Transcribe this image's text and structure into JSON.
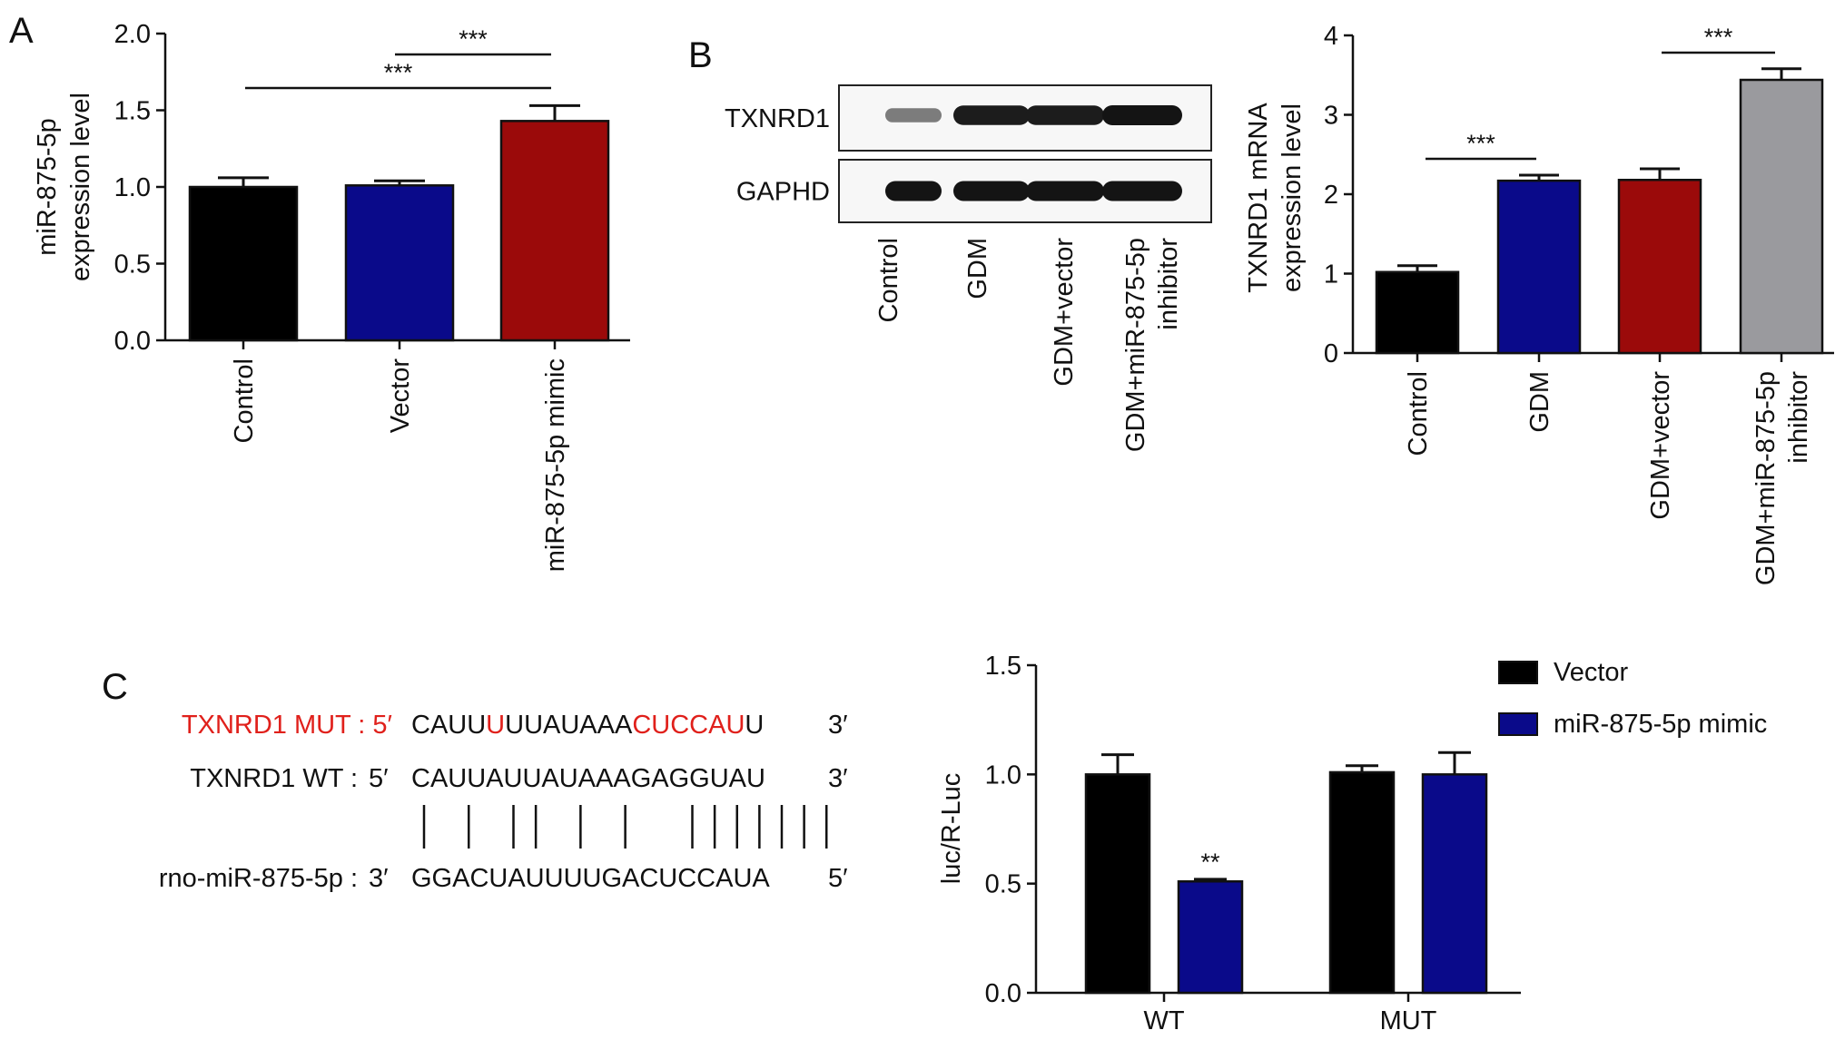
{
  "panels": {
    "a": "A",
    "b": "B",
    "c": "C"
  },
  "colors": {
    "black": "#000000",
    "blue": "#0a0a8a",
    "red": "#9b0a0a",
    "grey": "#9a9a9e",
    "seq_red": "#e0201b"
  },
  "chart_data": [
    {
      "id": "panelA",
      "type": "bar",
      "categories": [
        "Control",
        "Vector",
        "miR-875-5p mimic"
      ],
      "values": [
        1.0,
        1.01,
        1.43
      ],
      "errors": [
        0.06,
        0.03,
        0.1
      ],
      "bar_colors": [
        "#000000",
        "#0a0a8a",
        "#9b0a0a"
      ],
      "ylabel": [
        "miR-875-5p",
        "expression level"
      ],
      "ylim": [
        0,
        2.0
      ],
      "yticks": [
        "0.0",
        "0.5",
        "1.0",
        "1.5",
        "2.0"
      ],
      "significance": [
        {
          "from": 0,
          "to": 2,
          "label": "***"
        },
        {
          "from": 1,
          "to": 2,
          "label": "***"
        }
      ]
    },
    {
      "id": "panelB_bar",
      "type": "bar",
      "categories": [
        "Control",
        "GDM",
        "GDM+vector",
        "GDM+miR-875-5p inhibitor"
      ],
      "category_lines": [
        [
          "Control"
        ],
        [
          "GDM"
        ],
        [
          "GDM+vector"
        ],
        [
          "GDM+miR-875-5p",
          "inhibitor"
        ]
      ],
      "values": [
        1.02,
        2.17,
        2.18,
        3.44
      ],
      "errors": [
        0.08,
        0.07,
        0.14,
        0.14
      ],
      "bar_colors": [
        "#000000",
        "#0a0a8a",
        "#9b0a0a",
        "#9a9a9e"
      ],
      "ylabel": [
        "TXNRD1 mRNA",
        "expression level"
      ],
      "ylim": [
        0,
        4
      ],
      "yticks": [
        "0",
        "1",
        "2",
        "3",
        "4"
      ],
      "significance": [
        {
          "from": 0,
          "to": 1,
          "label": "***"
        },
        {
          "from": 2,
          "to": 3,
          "label": "***"
        }
      ]
    },
    {
      "id": "panelC",
      "type": "bar",
      "categories": [
        "WT",
        "MUT"
      ],
      "series": [
        {
          "name": "Vector",
          "values": [
            1.0,
            1.01
          ],
          "errors": [
            0.09,
            0.03
          ],
          "color": "#000000"
        },
        {
          "name": "miR-875-5p mimic",
          "values": [
            0.51,
            1.0
          ],
          "errors": [
            0.01,
            0.1
          ],
          "color": "#0a0a8a"
        }
      ],
      "ylabel": "luc/R-Luc",
      "ylim": [
        0,
        1.5
      ],
      "yticks": [
        "0.0",
        "0.5",
        "1.0",
        "1.5"
      ],
      "annotations": [
        {
          "category": 0,
          "series": 1,
          "label": "**"
        }
      ],
      "legend_position": "top-right"
    }
  ],
  "western_blot": {
    "rows": [
      "TXNRD1",
      "GAPHD"
    ],
    "lanes": [
      "Control",
      "GDM",
      "GDM+vector",
      "GDM+miR-875-5p inhibitor"
    ],
    "lane_lines": [
      [
        "Control"
      ],
      [
        "GDM"
      ],
      [
        "GDM+vector"
      ],
      [
        "GDM+miR-875-5p",
        "inhibitor"
      ]
    ],
    "intensity": [
      [
        0.35,
        0.95,
        0.95,
        1.0
      ],
      [
        1.0,
        1.0,
        1.0,
        1.0
      ]
    ]
  },
  "sequences": {
    "mut": {
      "label": "TXNRD1 MUT : 5′",
      "parts": [
        {
          "t": "CAUU",
          "red": false
        },
        {
          "t": "U",
          "red": true
        },
        {
          "t": "UUAUAAA",
          "red": false
        },
        {
          "t": "CUCCAU",
          "red": true
        },
        {
          "t": "U",
          "red": false
        }
      ],
      "end": "3′"
    },
    "wt": {
      "label": "TXNRD1 WT :",
      "prime": "5′",
      "seq": "CAUUAUUAUAAAGAGGUAU",
      "end": "3′"
    },
    "mir": {
      "label": "rno-miR-875-5p :",
      "prime": "3′",
      "seq": "GGACUAUUUUGACUCCAUA",
      "end": "5′"
    },
    "pairs": [
      0,
      2,
      4,
      5,
      7,
      9,
      12,
      13,
      14,
      15,
      16,
      17,
      18
    ]
  }
}
